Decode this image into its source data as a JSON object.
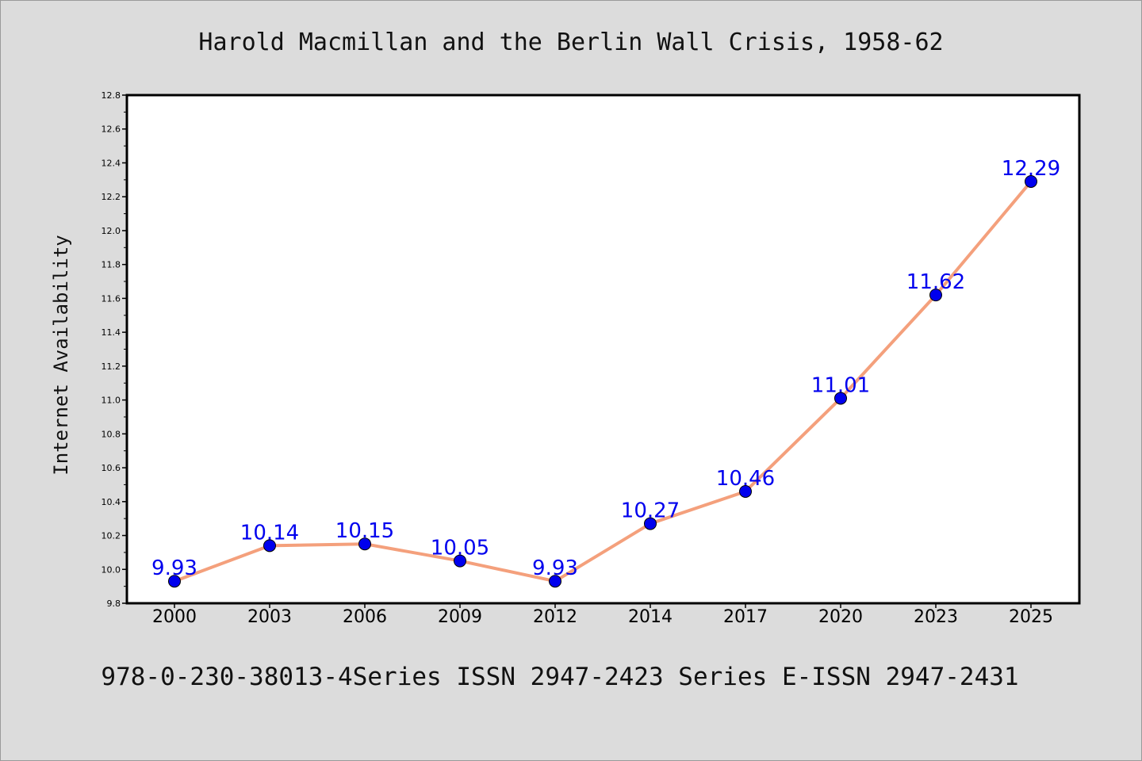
{
  "chart_data": {
    "type": "line",
    "title": "Harold Macmillan and the Berlin Wall Crisis, 1958-62",
    "caption": "978-0-230-38013-4Series ISSN 2947-2423 Series E-ISSN 2947-2431",
    "xlabel": "",
    "ylabel": "Internet Availability",
    "categories": [
      "2000",
      "2003",
      "2006",
      "2009",
      "2012",
      "2014",
      "2017",
      "2020",
      "2023",
      "2025"
    ],
    "series": [
      {
        "values": [
          9.93,
          10.14,
          10.15,
          10.05,
          9.93,
          10.27,
          10.46,
          11.01,
          11.62,
          12.29
        ],
        "labels": [
          "9.93",
          "10.14",
          "10.15",
          "10.05",
          "9.93",
          "10.27",
          "10.46",
          "11.01",
          "11.62",
          "12.29"
        ],
        "line_color": "#f4a07c",
        "marker_color": "#0000ee",
        "label_color": "#0000ee"
      }
    ],
    "ylim": [
      9.8,
      12.8
    ],
    "yticks": [
      "9.8",
      "10.0",
      "10.2",
      "10.4",
      "10.6",
      "10.8",
      "11.0",
      "11.2",
      "11.4",
      "11.6",
      "11.8",
      "12.0",
      "12.2",
      "12.4",
      "12.6",
      "12.8"
    ],
    "grid": false,
    "legend": "none",
    "background_color": "#dcdcdc",
    "plot_background_color": "#ffffff"
  }
}
